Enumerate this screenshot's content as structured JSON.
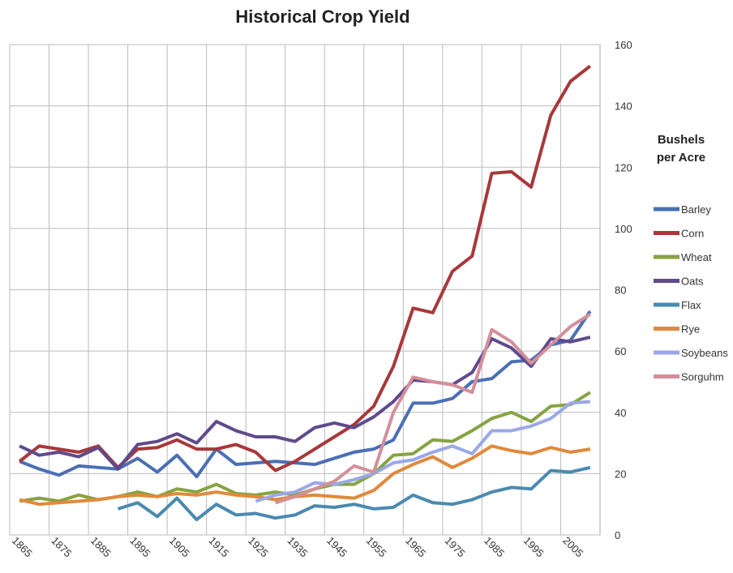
{
  "chart_data": {
    "type": "line",
    "title": "Historical Crop Yield",
    "legend_title": "Bushels per Acre",
    "categories": [
      "1865",
      null,
      "1875",
      null,
      "1885",
      null,
      "1895",
      null,
      "1905",
      null,
      "1915",
      null,
      "1925",
      null,
      "1935",
      null,
      "1945",
      null,
      "1955",
      null,
      "1965",
      null,
      "1975",
      null,
      "1985",
      null,
      "1995",
      null,
      "2005",
      null
    ],
    "series": [
      {
        "name": "Barley",
        "color": "#4a6fb5",
        "values": [
          24,
          21.5,
          19.5,
          22.5,
          22,
          21.5,
          25,
          20.5,
          26,
          19,
          28,
          23,
          23.5,
          24,
          23.5,
          23,
          25,
          27,
          28,
          31,
          43,
          43,
          44.5,
          50,
          51,
          56.5,
          57,
          62,
          63.5,
          73
        ]
      },
      {
        "name": "Corn",
        "color": "#a8383b",
        "values": [
          24,
          29,
          28,
          27,
          29,
          22,
          28,
          28.5,
          31,
          28,
          28,
          29.5,
          27,
          21,
          24,
          28,
          32,
          36,
          42,
          55,
          74,
          72.5,
          86,
          91,
          118,
          118.5,
          113.5,
          137,
          148,
          153
        ]
      },
      {
        "name": "Wheat",
        "color": "#86a342",
        "values": [
          11,
          12,
          11,
          13,
          11.5,
          12.5,
          14,
          12.5,
          15,
          14,
          16.5,
          13.5,
          13,
          14,
          13,
          15,
          16.5,
          16.5,
          20,
          26,
          26.5,
          31,
          30.5,
          34,
          38,
          40,
          37,
          42,
          42.5,
          46.5
        ]
      },
      {
        "name": "Oats",
        "color": "#5f4a8b",
        "values": [
          29,
          26,
          27,
          25.5,
          28.5,
          21.5,
          29.5,
          30.5,
          33,
          30,
          37,
          34,
          32,
          32,
          30.5,
          35,
          36.5,
          35,
          38.5,
          43.5,
          50.5,
          50,
          49,
          53,
          64,
          61,
          55,
          64,
          63,
          64.5
        ]
      },
      {
        "name": "Flax",
        "color": "#4a8ab0",
        "values": [
          null,
          null,
          null,
          null,
          null,
          8.5,
          10.5,
          6,
          12,
          5,
          10,
          6.5,
          7,
          5.5,
          6.5,
          9.5,
          9,
          10,
          8.5,
          9,
          13,
          10.5,
          10,
          11.5,
          14,
          15.5,
          15,
          21,
          20.5,
          22
        ]
      },
      {
        "name": "Rye",
        "color": "#e08a3c",
        "values": [
          11.5,
          10,
          10.5,
          11,
          11.5,
          12.5,
          13,
          12.5,
          13.5,
          13,
          14,
          13,
          12.5,
          11.5,
          12.5,
          13,
          12.5,
          12,
          14.5,
          20,
          23,
          25.5,
          22,
          25,
          29,
          27.5,
          26.5,
          28.5,
          27,
          28
        ]
      },
      {
        "name": "Soybeans",
        "color": "#9aa8e8",
        "values": [
          null,
          null,
          null,
          null,
          null,
          null,
          null,
          null,
          null,
          null,
          null,
          null,
          11,
          13,
          14,
          17,
          16.5,
          18,
          20,
          23.5,
          24.5,
          27,
          29,
          26.5,
          34,
          34,
          35.5,
          38,
          43,
          43.5
        ]
      },
      {
        "name": "Sorguhm",
        "color": "#d48f9a",
        "values": [
          null,
          null,
          null,
          null,
          null,
          null,
          null,
          null,
          null,
          null,
          null,
          null,
          null,
          10.5,
          12.5,
          15,
          17.5,
          22.5,
          20.5,
          40,
          51.5,
          50,
          49,
          46.5,
          67,
          63,
          56,
          62,
          68,
          72
        ]
      }
    ],
    "ylim": [
      0,
      160
    ],
    "yticks": [
      0,
      20,
      40,
      60,
      80,
      100,
      120,
      140,
      160
    ],
    "grid": true
  }
}
